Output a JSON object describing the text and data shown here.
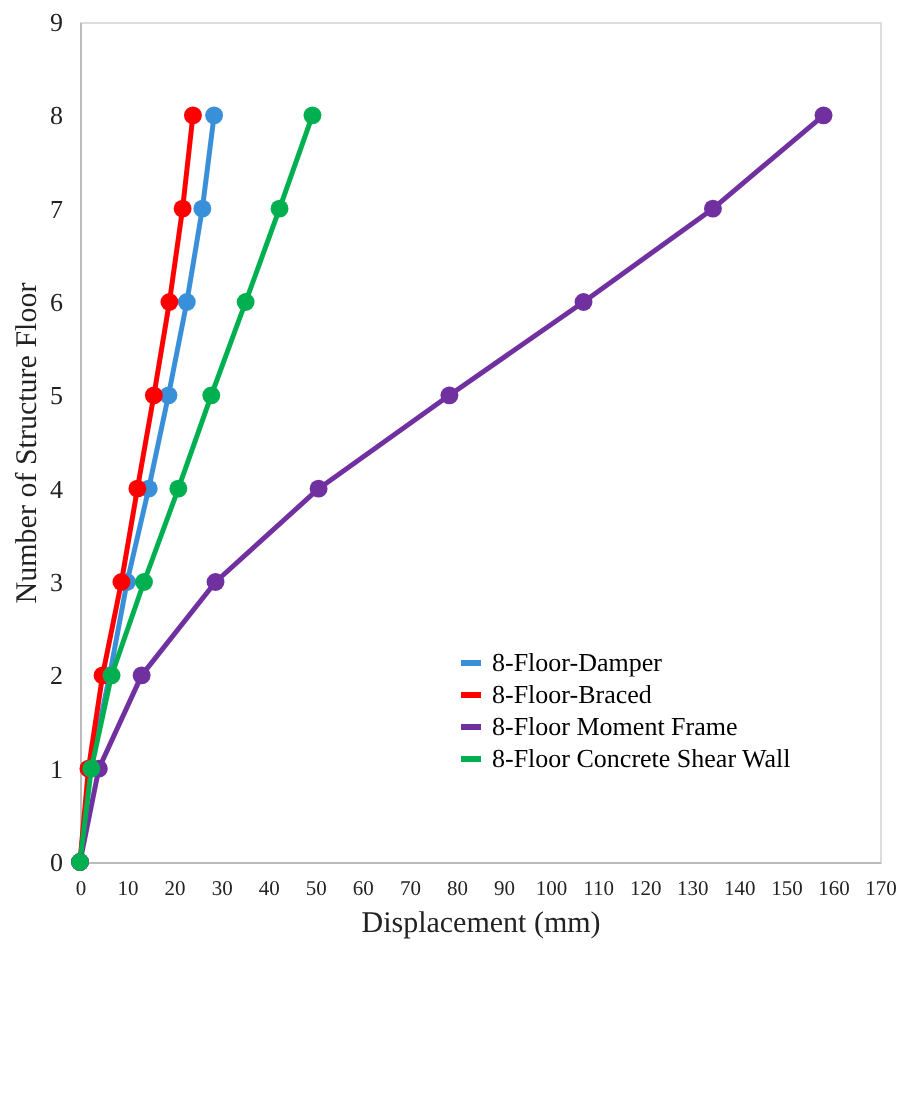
{
  "chart_data": {
    "type": "line",
    "xlabel": "Displacement (mm)",
    "ylabel": "Number of Structure Floor",
    "xlim": [
      0,
      170
    ],
    "xticks": [
      0,
      10,
      20,
      30,
      40,
      50,
      60,
      70,
      80,
      90,
      100,
      110,
      120,
      130,
      140,
      150,
      160,
      170
    ],
    "ylim": [
      0,
      9
    ],
    "yticks": [
      0,
      1,
      2,
      3,
      4,
      5,
      6,
      7,
      8,
      9
    ],
    "grid": false,
    "legend": "bottom right",
    "marker": "circle",
    "line_style": "solid",
    "series": [
      {
        "name": "8-Floor-Damper",
        "color": "#3a8fd9",
        "x": [
          0,
          2.2,
          6.3,
          10,
          14.6,
          18.8,
          22.7,
          26,
          28.5
        ],
        "values": [
          0,
          1,
          2,
          3,
          4,
          5,
          6,
          7,
          8
        ]
      },
      {
        "name": "8-Floor-Braced",
        "color": "#ff0000",
        "x": [
          0,
          1.8,
          4.8,
          8.8,
          12.2,
          15.7,
          19,
          21.8,
          24
        ],
        "values": [
          0,
          1,
          2,
          3,
          4,
          5,
          6,
          7,
          8
        ]
      },
      {
        "name": "8-Floor Moment Frame",
        "color": "#7030a0",
        "x": [
          0,
          4,
          13.1,
          28.8,
          50.7,
          78.5,
          107,
          134.5,
          158
        ],
        "values": [
          0,
          1,
          2,
          3,
          4,
          5,
          6,
          7,
          8
        ]
      },
      {
        "name": "8-Floor Concrete Shear Wall",
        "color": "#00b050",
        "x": [
          0,
          2.4,
          6.7,
          13.6,
          20.9,
          27.9,
          35.2,
          42.4,
          49.4
        ],
        "values": [
          0,
          1,
          2,
          3,
          4,
          5,
          6,
          7,
          8
        ]
      }
    ]
  }
}
